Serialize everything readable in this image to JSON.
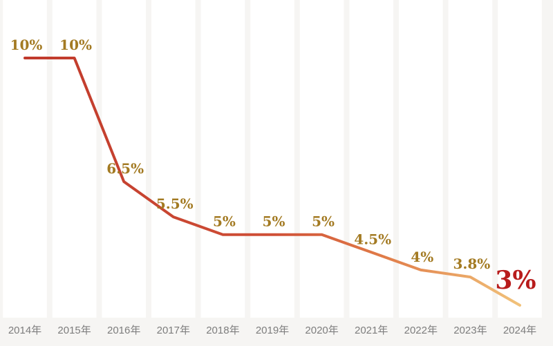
{
  "chart_data": {
    "type": "line",
    "categories": [
      "2014年",
      "2015年",
      "2016年",
      "2017年",
      "2018年",
      "2019年",
      "2020年",
      "2021年",
      "2022年",
      "2023年",
      "2024年"
    ],
    "values": [
      10,
      10,
      6.5,
      5.5,
      5,
      5,
      5,
      4.5,
      4,
      3.8,
      3
    ],
    "data_labels": [
      "10%",
      "10%",
      "6.5%",
      "5.5%",
      "5%",
      "5%",
      "5%",
      "4.5%",
      "4%",
      "3.8%",
      "3%"
    ],
    "highlight_index": 10,
    "title": "",
    "xlabel": "",
    "ylabel": "",
    "grid": false,
    "legend": "none"
  },
  "colors": {
    "line_start": "#c0392b",
    "line_mid": "#e07b48",
    "line_end": "#f1c27a",
    "label": "#a37a22",
    "highlight_label": "#b81c1c",
    "tick": "#7d7d7d"
  }
}
